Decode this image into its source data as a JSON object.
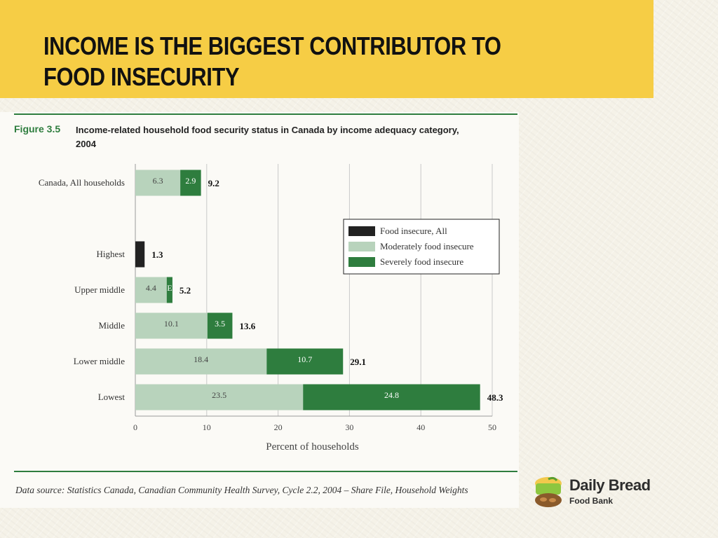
{
  "slide": {
    "title": "INCOME IS THE BIGGEST CONTRIBUTOR TO FOOD INSECURITY",
    "figure_number": "Figure 3.5",
    "figure_caption": "Income-related household food security status in Canada by income adequacy category, 2004",
    "source": "Data source: Statistics Canada, Canadian Community Health Survey, Cycle 2.2, 2004 – Share File, Household Weights",
    "logo_name": "Daily Bread",
    "logo_sub": "Food Bank"
  },
  "colors": {
    "title_band": "#f6cd45",
    "all": "#222222",
    "moderate": "#b8d3bc",
    "severe": "#2e7d3e",
    "rule": "#2e7d3e"
  },
  "chart_data": {
    "type": "bar",
    "orientation": "horizontal",
    "stacked": true,
    "categories": [
      "Canada, All households",
      "Highest",
      "Upper middle",
      "Middle",
      "Lower middle",
      "Lowest"
    ],
    "series": [
      {
        "name": "Food insecure, All",
        "values": [
          null,
          1.3,
          null,
          null,
          null,
          null
        ]
      },
      {
        "name": "Moderately food insecure",
        "values": [
          6.3,
          null,
          4.4,
          10.1,
          18.4,
          23.5
        ]
      },
      {
        "name": "Severely food insecure",
        "values": [
          2.9,
          null,
          0.8,
          3.5,
          10.7,
          24.8
        ]
      }
    ],
    "segment_labels": {
      "moderate": [
        "6.3",
        "",
        "4.4",
        "10.1",
        "18.4",
        "23.5"
      ],
      "severe": [
        "2.9",
        "",
        "E",
        "3.5",
        "10.7",
        "24.8"
      ]
    },
    "totals": [
      "9.2",
      "1.3",
      "5.2",
      "13.6",
      "29.1",
      "48.3"
    ],
    "xlabel": "Percent of households",
    "ylabel": "",
    "xlim": [
      0,
      50
    ],
    "xticks": [
      0,
      10,
      20,
      30,
      40,
      50
    ],
    "grid": true,
    "legend_position": "right"
  }
}
